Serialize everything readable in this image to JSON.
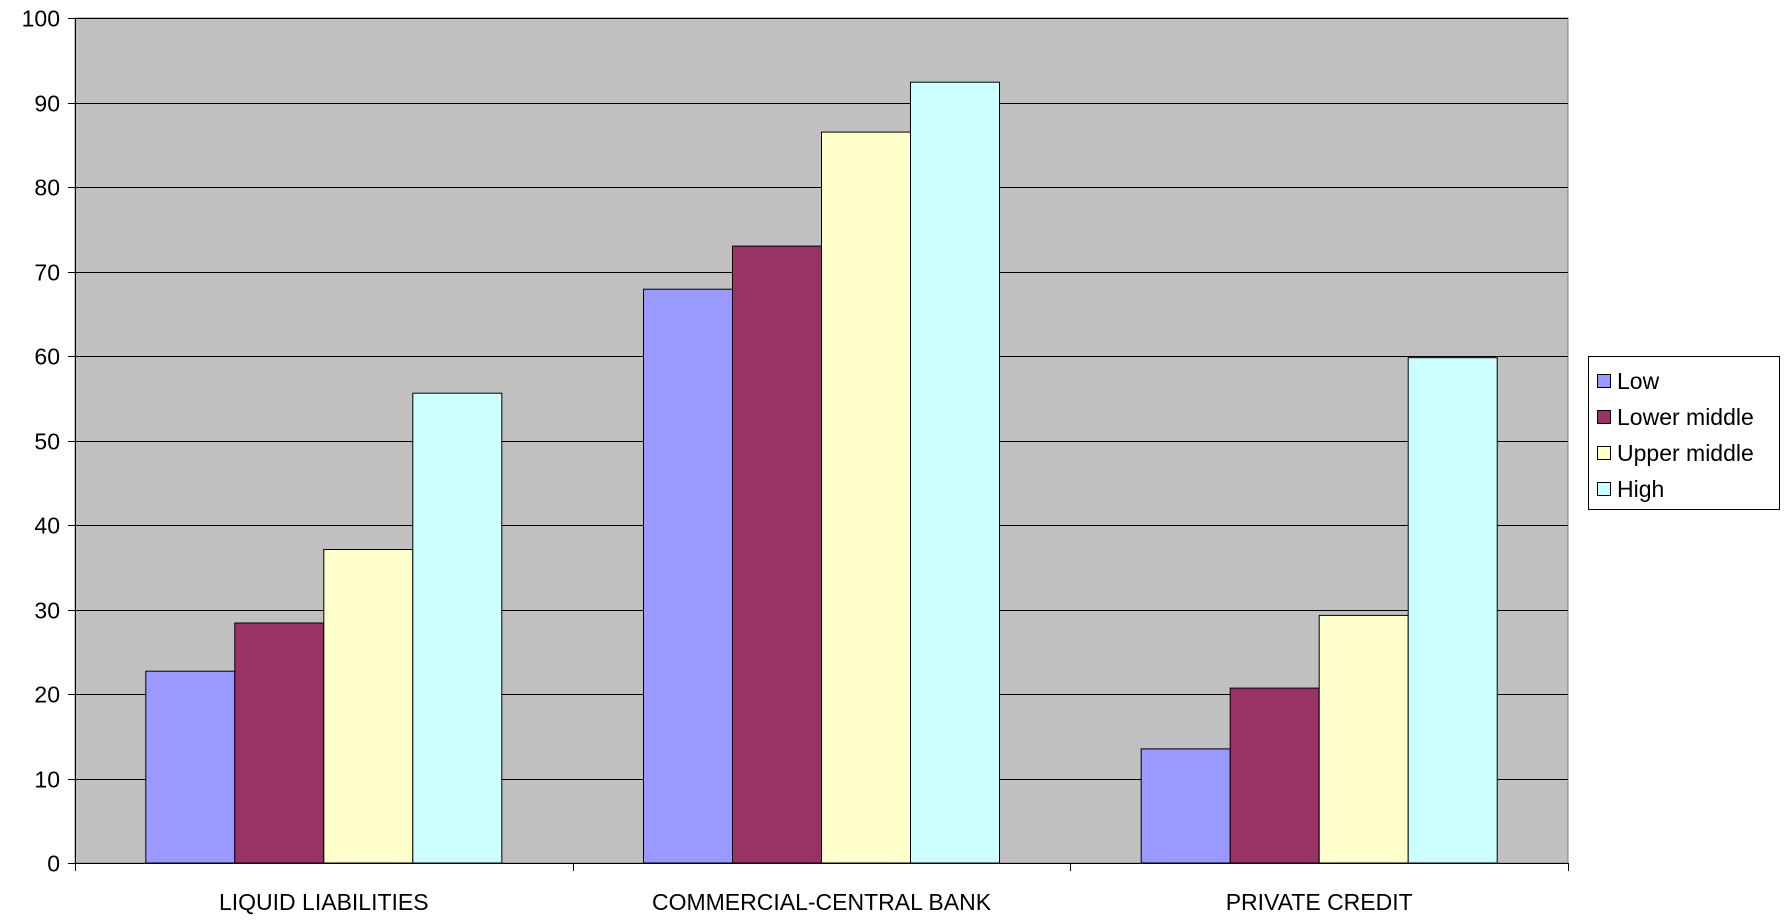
{
  "chart_data": {
    "type": "bar",
    "categories": [
      "LIQUID LIABILITIES",
      "COMMERCIAL-CENTRAL BANK",
      "PRIVATE CREDIT"
    ],
    "series": [
      {
        "name": "Low",
        "color": "#9999ff",
        "values": [
          22.7,
          67.9,
          13.5
        ]
      },
      {
        "name": "Lower middle",
        "color": "#993366",
        "values": [
          28.4,
          73.0,
          20.7
        ]
      },
      {
        "name": "Upper middle",
        "color": "#ffffcc",
        "values": [
          37.1,
          86.5,
          29.3
        ]
      },
      {
        "name": "High",
        "color": "#ccffff",
        "values": [
          55.6,
          92.4,
          59.8
        ]
      }
    ],
    "yticks": [
      0,
      10,
      20,
      30,
      40,
      50,
      60,
      70,
      80,
      90,
      100
    ],
    "ylim": [
      0,
      100
    ],
    "grid": true,
    "legend_position": "right",
    "plot_background": "#c0c0c0",
    "title": "",
    "xlabel": "",
    "ylabel": ""
  }
}
